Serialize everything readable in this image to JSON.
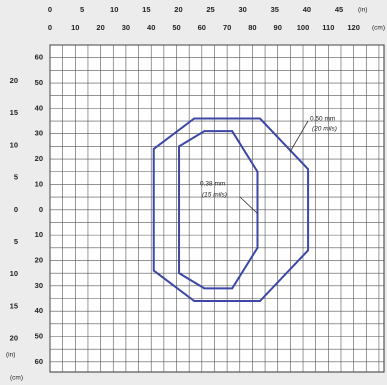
{
  "chart_data": {
    "type": "line",
    "xlim": [
      0,
      132
    ],
    "ylim": [
      -64,
      65
    ],
    "x2lim": [
      0,
      52
    ],
    "y2lim": [
      -25.2,
      25.6
    ],
    "xticks": [
      0,
      10,
      20,
      30,
      40,
      50,
      60,
      70,
      80,
      90,
      100,
      110,
      120
    ],
    "x2ticks": [
      0,
      5,
      10,
      15,
      20,
      25,
      30,
      35,
      40,
      45
    ],
    "yticks": [
      {
        "value": 60,
        "label": "60"
      },
      {
        "value": 50,
        "label": "50"
      },
      {
        "value": 40,
        "label": "40"
      },
      {
        "value": 30,
        "label": "30"
      },
      {
        "value": 20,
        "label": "20"
      },
      {
        "value": 10,
        "label": "10"
      },
      {
        "value": 0,
        "label": "0"
      },
      {
        "value": -10,
        "label": "10"
      },
      {
        "value": -20,
        "label": "20"
      },
      {
        "value": -30,
        "label": "30"
      },
      {
        "value": -40,
        "label": "40"
      },
      {
        "value": -50,
        "label": "50"
      },
      {
        "value": -60,
        "label": "60"
      }
    ],
    "y2ticks": [
      {
        "value": 20,
        "label": "20"
      },
      {
        "value": 15,
        "label": "15"
      },
      {
        "value": 10,
        "label": "10"
      },
      {
        "value": 5,
        "label": "5"
      },
      {
        "value": 0,
        "label": "0"
      },
      {
        "value": -5,
        "label": "5"
      },
      {
        "value": -10,
        "label": "10"
      },
      {
        "value": -15,
        "label": "15"
      },
      {
        "value": -20,
        "label": "20"
      }
    ],
    "x_unit_top": "(in)",
    "x_unit": "(cm)",
    "y_unit_left": "(in)",
    "y_unit": "(cm)",
    "grid": true,
    "series": [
      {
        "name": "0.50 mm",
        "sublabel": "(20 mils)",
        "color": "#3d47a6",
        "x": [
          41,
          57,
          83,
          102,
          102,
          83,
          57,
          41
        ],
        "values": [
          24,
          36,
          36,
          16,
          -16,
          -36,
          -36,
          -24
        ]
      },
      {
        "name": "0.38 mm",
        "sublabel": "(15 mils)",
        "color": "#3d47a6",
        "x": [
          51,
          61,
          72,
          82,
          82,
          72,
          61,
          51
        ],
        "values": [
          25,
          31,
          31,
          15,
          -15,
          -31,
          -31,
          -25
        ]
      }
    ]
  }
}
